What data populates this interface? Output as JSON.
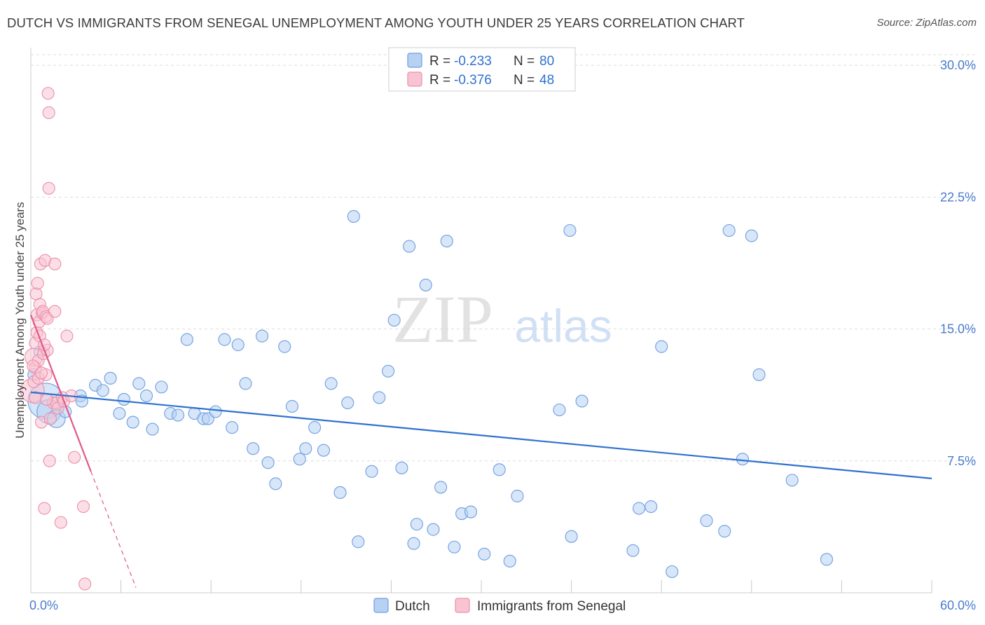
{
  "header": {
    "title": "DUTCH VS IMMIGRANTS FROM SENEGAL UNEMPLOYMENT AMONG YOUTH UNDER 25 YEARS CORRELATION CHART",
    "source": "Source: ZipAtlas.com"
  },
  "watermark": {
    "zip": "ZIP",
    "atlas": "atlas"
  },
  "colors": {
    "dutch_fill": "#b7d1f3",
    "dutch_stroke": "#6f9ee0",
    "dutch_line": "#2f72cf",
    "senegal_fill": "#f9c4d2",
    "senegal_stroke": "#ea8fab",
    "senegal_line": "#e0588a",
    "tick_label": "#4a7bd0",
    "grid": "#dddddd"
  },
  "chart_data": {
    "type": "scatter",
    "title": "DUTCH VS IMMIGRANTS FROM SENEGAL UNEMPLOYMENT AMONG YOUTH UNDER 25 YEARS CORRELATION CHART",
    "xlabel": "",
    "ylabel": "Unemployment Among Youth under 25 years",
    "xlim": [
      0,
      60
    ],
    "ylim": [
      0,
      31
    ],
    "x_tick_labels": [
      "0.0%",
      "60.0%"
    ],
    "y_ticks": [
      7.5,
      15.0,
      22.5,
      30.0
    ],
    "y_tick_labels": [
      "7.5%",
      "15.0%",
      "22.5%",
      "30.0%"
    ],
    "grid": true,
    "legend_placement": "top-center",
    "stats": [
      {
        "r_label": "R =",
        "r": "-0.233",
        "n_label": "N =",
        "n": "80"
      },
      {
        "r_label": "R =",
        "r": "-0.376",
        "n_label": "N =",
        "n": "48"
      }
    ],
    "series": [
      {
        "name": "Dutch",
        "trend": {
          "x": [
            0.0,
            60.0
          ],
          "y": [
            11.4,
            6.5
          ]
        },
        "points": [
          [
            1.0,
            10.9,
            3
          ],
          [
            1.2,
            10.3,
            2
          ],
          [
            1.7,
            9.9,
            1.5
          ],
          [
            2.3,
            10.3,
            1
          ],
          [
            3.3,
            11.2,
            1
          ],
          [
            3.4,
            10.9,
            1
          ],
          [
            4.3,
            11.8,
            1
          ],
          [
            4.8,
            11.5,
            1
          ],
          [
            5.3,
            12.2,
            1
          ],
          [
            5.9,
            10.2,
            1
          ],
          [
            6.2,
            11.0,
            1
          ],
          [
            6.8,
            9.7,
            1
          ],
          [
            7.2,
            11.9,
            1
          ],
          [
            7.7,
            11.2,
            1
          ],
          [
            8.1,
            9.3,
            1
          ],
          [
            8.7,
            11.7,
            1
          ],
          [
            9.3,
            10.2,
            1
          ],
          [
            9.8,
            10.1,
            1
          ],
          [
            10.4,
            14.4,
            1
          ],
          [
            10.9,
            10.2,
            1
          ],
          [
            11.5,
            9.9,
            1
          ],
          [
            11.8,
            9.9,
            1
          ],
          [
            12.3,
            10.3,
            1
          ],
          [
            12.9,
            14.4,
            1
          ],
          [
            13.4,
            9.4,
            1
          ],
          [
            13.8,
            14.1,
            1
          ],
          [
            14.3,
            11.9,
            1
          ],
          [
            14.8,
            8.2,
            1
          ],
          [
            15.4,
            14.6,
            1
          ],
          [
            15.8,
            7.4,
            1
          ],
          [
            16.3,
            6.2,
            1
          ],
          [
            16.9,
            14.0,
            1
          ],
          [
            17.4,
            10.6,
            1
          ],
          [
            17.9,
            7.6,
            1
          ],
          [
            18.3,
            8.2,
            1
          ],
          [
            18.9,
            9.4,
            1
          ],
          [
            19.5,
            8.1,
            1
          ],
          [
            20.0,
            11.9,
            1
          ],
          [
            20.6,
            5.7,
            1
          ],
          [
            21.1,
            10.8,
            1
          ],
          [
            21.5,
            21.4,
            1
          ],
          [
            21.8,
            2.9,
            1
          ],
          [
            22.7,
            6.9,
            1
          ],
          [
            23.2,
            11.1,
            1
          ],
          [
            23.8,
            12.6,
            1
          ],
          [
            24.2,
            15.5,
            1
          ],
          [
            24.7,
            7.1,
            1
          ],
          [
            25.2,
            19.7,
            1
          ],
          [
            25.7,
            3.9,
            1
          ],
          [
            25.5,
            2.8,
            1
          ],
          [
            26.3,
            17.5,
            1
          ],
          [
            26.8,
            3.6,
            1
          ],
          [
            27.3,
            6.0,
            1
          ],
          [
            27.7,
            20.0,
            1
          ],
          [
            28.2,
            2.6,
            1
          ],
          [
            28.7,
            4.5,
            1
          ],
          [
            29.3,
            4.6,
            1
          ],
          [
            30.2,
            2.2,
            1
          ],
          [
            31.2,
            7.0,
            1
          ],
          [
            31.9,
            1.8,
            1
          ],
          [
            32.4,
            5.5,
            1
          ],
          [
            35.2,
            10.4,
            1
          ],
          [
            35.9,
            20.6,
            1
          ],
          [
            36.0,
            3.2,
            1
          ],
          [
            36.7,
            10.9,
            1
          ],
          [
            40.1,
            2.4,
            1
          ],
          [
            40.5,
            4.8,
            1
          ],
          [
            41.3,
            4.9,
            1
          ],
          [
            42.0,
            14.0,
            1
          ],
          [
            42.7,
            1.2,
            1
          ],
          [
            45.0,
            4.1,
            1
          ],
          [
            46.2,
            3.5,
            1
          ],
          [
            46.5,
            20.6,
            1
          ],
          [
            47.4,
            7.6,
            1
          ],
          [
            48.0,
            20.3,
            1
          ],
          [
            48.5,
            12.4,
            1
          ],
          [
            50.7,
            6.4,
            1
          ],
          [
            53.0,
            1.9,
            1
          ],
          [
            0.6,
            13.7,
            1
          ],
          [
            0.2,
            12.4,
            1
          ]
        ]
      },
      {
        "name": "Immigrants from Senegal",
        "trend": {
          "x": [
            0.0,
            4.0
          ],
          "y": [
            15.8,
            6.9
          ]
        },
        "trend_ext": {
          "x": [
            4.0,
            7.0
          ],
          "y": [
            6.9,
            0.3
          ]
        },
        "points": [
          [
            0.1,
            11.5,
            2
          ],
          [
            0.2,
            13.4,
            1.5
          ],
          [
            0.2,
            12.0,
            1
          ],
          [
            0.3,
            14.2,
            1
          ],
          [
            0.3,
            12.8,
            1
          ],
          [
            0.35,
            17.0,
            1
          ],
          [
            0.4,
            15.8,
            1
          ],
          [
            0.4,
            14.8,
            1
          ],
          [
            0.45,
            17.6,
            1
          ],
          [
            0.5,
            13.2,
            1
          ],
          [
            0.5,
            12.2,
            1
          ],
          [
            0.55,
            15.4,
            1
          ],
          [
            0.6,
            16.4,
            1
          ],
          [
            0.6,
            14.6,
            1
          ],
          [
            0.65,
            18.7,
            1
          ],
          [
            0.7,
            9.7,
            1
          ],
          [
            0.75,
            15.9,
            1
          ],
          [
            0.8,
            16.0,
            1
          ],
          [
            0.85,
            13.6,
            1
          ],
          [
            0.9,
            4.8,
            1
          ],
          [
            0.95,
            18.9,
            1
          ],
          [
            1.0,
            12.4,
            1
          ],
          [
            1.0,
            15.7,
            1
          ],
          [
            1.1,
            13.8,
            1
          ],
          [
            1.1,
            15.6,
            1
          ],
          [
            1.15,
            28.4,
            1
          ],
          [
            1.2,
            27.3,
            1
          ],
          [
            1.2,
            23.0,
            1
          ],
          [
            1.25,
            7.5,
            1
          ],
          [
            1.3,
            9.9,
            1
          ],
          [
            1.5,
            10.8,
            1
          ],
          [
            1.6,
            18.7,
            1
          ],
          [
            1.6,
            16.0,
            1
          ],
          [
            1.7,
            10.8,
            1
          ],
          [
            1.8,
            10.5,
            1
          ],
          [
            2.0,
            4.0,
            1
          ],
          [
            2.1,
            11.1,
            1
          ],
          [
            2.2,
            10.9,
            1
          ],
          [
            2.4,
            14.6,
            1
          ],
          [
            2.7,
            11.2,
            1
          ],
          [
            2.9,
            7.7,
            1
          ],
          [
            3.5,
            4.9,
            1
          ],
          [
            3.6,
            0.5,
            1
          ],
          [
            0.3,
            11.1,
            1
          ],
          [
            0.15,
            12.9,
            1
          ],
          [
            0.7,
            12.5,
            1
          ],
          [
            0.9,
            14.1,
            1
          ],
          [
            1.05,
            11.0,
            1
          ]
        ]
      }
    ]
  },
  "legend": {
    "items": [
      "Dutch",
      "Immigrants from Senegal"
    ]
  }
}
